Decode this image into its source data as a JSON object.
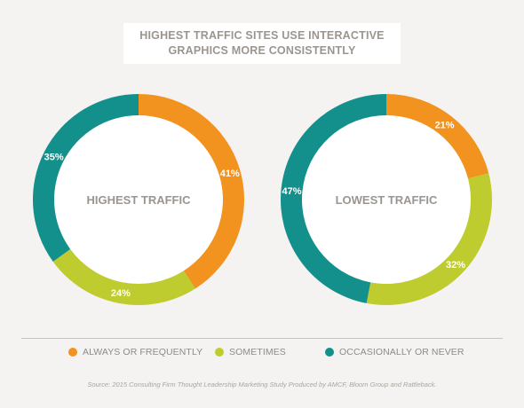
{
  "title": {
    "line1": "HIGHEST TRAFFIC SITES USE INTERACTIVE",
    "line2": "GRAPHICS MORE CONSISTENTLY"
  },
  "colors": {
    "always": "#f2921f",
    "sometimes": "#bfcc2f",
    "never": "#14908c"
  },
  "chart_data": [
    {
      "type": "pie",
      "donut": true,
      "title": "HIGHEST TRAFFIC",
      "categories": [
        "ALWAYS OR FREQUENTLY",
        "SOMETIMES",
        "OCCASIONALLY OR NEVER"
      ],
      "values": [
        41,
        24,
        35
      ],
      "labels": [
        "41%",
        "24%",
        "35%"
      ],
      "colors": [
        "#f2921f",
        "#bfcc2f",
        "#14908c"
      ]
    },
    {
      "type": "pie",
      "donut": true,
      "title": "LOWEST TRAFFIC",
      "categories": [
        "ALWAYS OR FREQUENTLY",
        "SOMETIMES",
        "OCCASIONALLY OR NEVER"
      ],
      "values": [
        21,
        32,
        47
      ],
      "labels": [
        "21%",
        "32%",
        "47%"
      ],
      "colors": [
        "#f2921f",
        "#bfcc2f",
        "#14908c"
      ]
    }
  ],
  "legend": {
    "items": [
      {
        "label": "ALWAYS OR FREQUENTLY",
        "color": "#f2921f"
      },
      {
        "label": "SOMETIMES",
        "color": "#bfcc2f"
      },
      {
        "label": "OCCASIONALLY OR NEVER",
        "color": "#14908c"
      }
    ]
  },
  "source": "Source: 2015 Consulting Firm Thought Leadership Marketing Study Produced by AMCF, Bloom Group and Rattleback."
}
